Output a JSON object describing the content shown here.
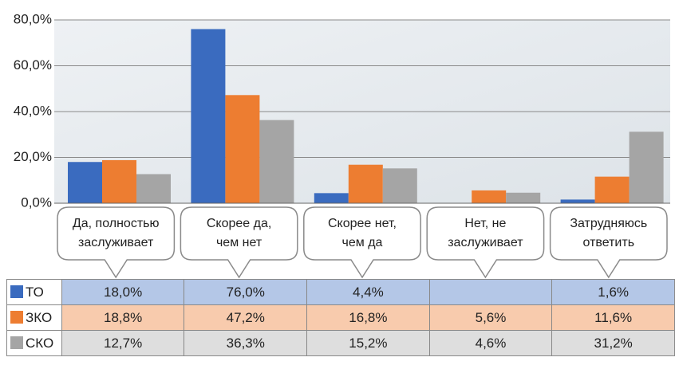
{
  "chart_data": {
    "type": "bar",
    "categories": [
      "Да, полностью\nзаслуживает",
      "Скорее да,\nчем нет",
      "Скорее нет,\nчем да",
      "Нет, не\nзаслуживает",
      "Затрудняюсь\nответить"
    ],
    "series": [
      {
        "name": "ТО",
        "color": "#3a6bbf",
        "row_color": "#b4c7e7",
        "values": [
          18.0,
          76.0,
          4.4,
          null,
          1.6
        ],
        "value_labels": [
          "18,0%",
          "76,0%",
          "4,4%",
          null,
          "1,6%"
        ]
      },
      {
        "name": "ЗКО",
        "color": "#ed7d31",
        "row_color": "#f8cbad",
        "values": [
          18.8,
          47.2,
          16.8,
          5.6,
          11.6
        ],
        "value_labels": [
          "18,8%",
          "47,2%",
          "16,8%",
          "5,6%",
          "11,6%"
        ]
      },
      {
        "name": "СКО",
        "color": "#a5a5a5",
        "row_color": "#dedede",
        "values": [
          12.7,
          36.3,
          15.2,
          4.6,
          31.2
        ],
        "value_labels": [
          "12,7%",
          "36,3%",
          "15,2%",
          "4,6%",
          "31,2%"
        ]
      }
    ],
    "ylim": [
      0,
      80
    ],
    "yticks": [
      {
        "value": 0,
        "label": "0,0%"
      },
      {
        "value": 20,
        "label": "20,0%"
      },
      {
        "value": 40,
        "label": "40,0%"
      },
      {
        "value": 60,
        "label": "60,0%"
      },
      {
        "value": 80,
        "label": "80,0%"
      }
    ],
    "grid": true
  }
}
